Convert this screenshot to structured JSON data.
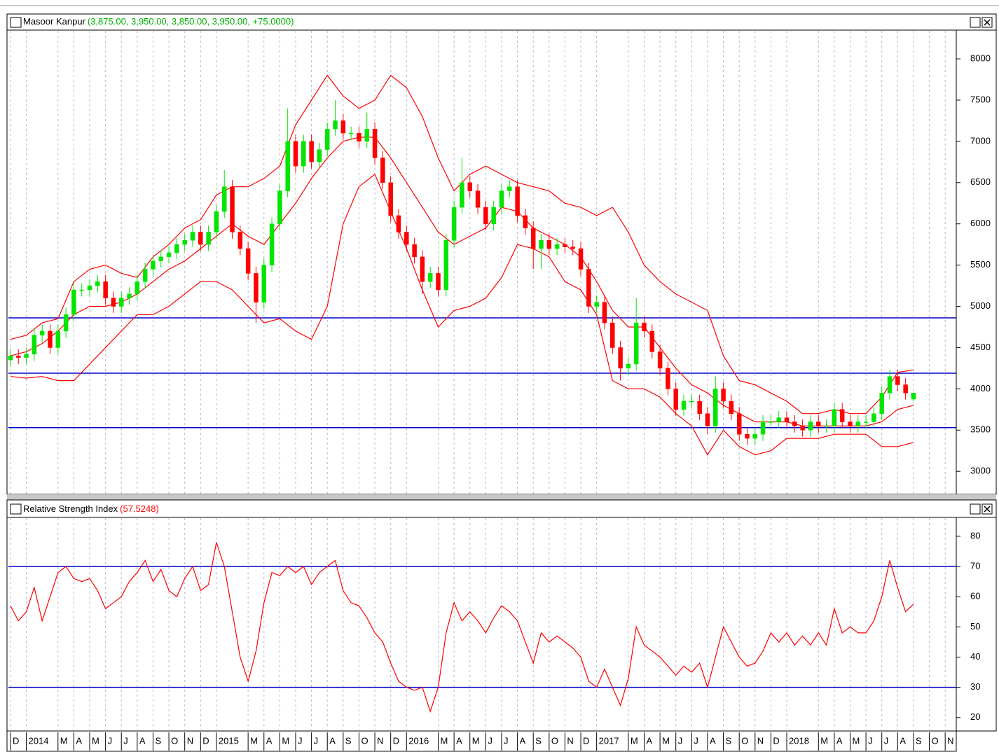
{
  "chart_data": [
    {
      "type": "candlestick",
      "title": "Masoor Kanpur",
      "subtitle": "(3,875.00, 3,950.00, 3,850.00, 3,950.00, +75.0000)",
      "x": [
        0,
        0.5,
        1,
        1.5,
        2,
        2.5,
        3,
        3.5,
        4,
        4.5,
        5,
        5.5,
        6,
        6.5,
        7,
        7.5,
        8,
        8.5,
        9,
        9.5,
        10,
        10.5,
        11,
        11.5,
        12,
        12.5,
        13,
        13.5,
        14,
        14.5,
        15,
        15.5,
        16,
        16.5,
        17,
        17.5,
        18,
        18.5,
        19,
        19.5,
        20,
        20.5,
        21,
        21.5,
        22,
        22.5,
        23,
        23.5,
        24,
        24.5,
        25,
        25.5,
        26,
        26.5,
        27,
        27.5,
        28,
        28.5,
        29,
        29.5,
        30,
        30.5,
        31,
        31.5,
        32,
        32.5,
        33,
        33.5,
        34,
        34.5,
        35,
        35.5,
        36,
        36.5,
        37,
        37.5,
        38,
        38.5,
        39,
        39.5,
        40,
        40.5,
        41,
        41.5,
        42,
        42.5,
        43,
        43.5,
        44,
        44.5,
        45,
        45.5,
        46,
        46.5,
        47,
        47.5,
        48,
        48.5,
        49,
        49.5,
        50,
        50.5,
        51,
        51.5,
        52,
        52.5,
        53,
        53.5,
        54,
        54.5,
        55,
        55.5,
        56,
        56.5,
        57
      ],
      "open": [
        4350,
        4400,
        4380,
        4420,
        4650,
        4700,
        4500,
        4700,
        4900,
        5200,
        5200,
        5250,
        5300,
        5100,
        5000,
        5100,
        5150,
        5300,
        5450,
        5550,
        5600,
        5650,
        5750,
        5800,
        5900,
        5750,
        5900,
        6150,
        6450,
        5900,
        5700,
        5400,
        5050,
        5500,
        6000,
        6400,
        7000,
        6700,
        7000,
        6750,
        6900,
        7150,
        7250,
        7100,
        7100,
        7000,
        7150,
        6800,
        6500,
        6100,
        5900,
        5750,
        5600,
        5300,
        5400,
        5200,
        5800,
        6200,
        6500,
        6400,
        6200,
        6000,
        6200,
        6400,
        6450,
        6100,
        5950,
        5700,
        5800,
        5700,
        5750,
        5720,
        5700,
        5450,
        5000,
        5050,
        4800,
        4500,
        4250,
        4300,
        4800,
        4700,
        4450,
        4250,
        4000,
        3750,
        3850,
        3850,
        3700,
        3550,
        4000,
        3850,
        3700,
        3450,
        3400,
        3450,
        3600,
        3600,
        3650,
        3600,
        3550,
        3500,
        3600,
        3550,
        3550,
        3750,
        3600,
        3550,
        3600,
        3600,
        3700,
        3950,
        4150,
        4050,
        3875
      ],
      "high": [
        4480,
        4480,
        4500,
        4730,
        4780,
        4780,
        4780,
        4980,
        5280,
        5280,
        5330,
        5380,
        5380,
        5180,
        5180,
        5230,
        5380,
        5530,
        5630,
        5680,
        5730,
        5830,
        5880,
        5980,
        5980,
        5980,
        6230,
        6650,
        6530,
        5980,
        5780,
        5480,
        5580,
        6080,
        6480,
        7400,
        7080,
        7080,
        7080,
        6980,
        7230,
        7500,
        7330,
        7180,
        7180,
        7350,
        7230,
        6880,
        6580,
        6180,
        5980,
        5830,
        5680,
        5480,
        5480,
        5880,
        6280,
        6800,
        6580,
        6480,
        6280,
        6280,
        6480,
        6530,
        6530,
        6180,
        6030,
        5880,
        5880,
        5830,
        5830,
        5800,
        5780,
        5530,
        5130,
        5130,
        4880,
        4580,
        4380,
        5100,
        4880,
        4780,
        4530,
        4330,
        4080,
        3930,
        3930,
        3930,
        3780,
        4150,
        4080,
        3930,
        3780,
        3530,
        3530,
        3680,
        3680,
        3730,
        3730,
        3680,
        3630,
        3680,
        3680,
        3630,
        3830,
        3830,
        3680,
        3680,
        3680,
        3780,
        4030,
        4230,
        4230,
        4130,
        3950
      ],
      "low": [
        4270,
        4300,
        4300,
        4340,
        4570,
        4420,
        4420,
        4620,
        4820,
        5120,
        5120,
        5170,
        5020,
        4920,
        4920,
        5020,
        5070,
        5220,
        5370,
        5470,
        5520,
        5570,
        5670,
        5720,
        5670,
        5670,
        5820,
        6070,
        5820,
        5620,
        5320,
        4800,
        4970,
        5420,
        5920,
        6320,
        6620,
        6620,
        6670,
        6670,
        6820,
        7070,
        7020,
        7020,
        6920,
        6920,
        6720,
        6420,
        6020,
        5820,
        5670,
        5520,
        5150,
        5220,
        5120,
        5120,
        5720,
        6120,
        6320,
        6120,
        5920,
        5920,
        6120,
        6320,
        6020,
        5870,
        5450,
        5450,
        5620,
        5620,
        5640,
        5620,
        5370,
        4920,
        4920,
        4720,
        4420,
        4100,
        4170,
        4220,
        4620,
        4370,
        4170,
        3920,
        3670,
        3670,
        3770,
        3620,
        3450,
        3470,
        3770,
        3620,
        3370,
        3320,
        3320,
        3370,
        3520,
        3520,
        3520,
        3470,
        3420,
        3420,
        3470,
        3470,
        3470,
        3520,
        3470,
        3470,
        3520,
        3520,
        3620,
        3870,
        3970,
        3870,
        3850
      ],
      "close": [
        4400,
        4380,
        4420,
        4650,
        4700,
        4500,
        4700,
        4900,
        5200,
        5200,
        5250,
        5300,
        5100,
        5000,
        5100,
        5150,
        5300,
        5450,
        5550,
        5600,
        5650,
        5750,
        5800,
        5900,
        5750,
        5900,
        6150,
        6450,
        5900,
        5700,
        5400,
        5050,
        5500,
        6000,
        6400,
        7000,
        6700,
        7000,
        6750,
        6900,
        7150,
        7250,
        7100,
        7100,
        7000,
        7150,
        6800,
        6500,
        6100,
        5900,
        5750,
        5600,
        5300,
        5400,
        5200,
        5800,
        6200,
        6500,
        6400,
        6200,
        6000,
        6200,
        6400,
        6450,
        6100,
        5950,
        5700,
        5800,
        5700,
        5750,
        5720,
        5700,
        5450,
        5000,
        5050,
        4800,
        4500,
        4250,
        4300,
        4800,
        4700,
        4450,
        4250,
        4000,
        3750,
        3850,
        3850,
        3700,
        3550,
        4000,
        3850,
        3700,
        3450,
        3400,
        3450,
        3600,
        3600,
        3650,
        3600,
        3550,
        3500,
        3600,
        3550,
        3550,
        3750,
        3600,
        3550,
        3600,
        3600,
        3700,
        3950,
        4150,
        4050,
        3950,
        3950
      ],
      "up_color": "#00e600",
      "down_color": "#ff0000",
      "band_x": [
        0,
        1,
        2,
        3,
        4,
        5,
        6,
        7,
        8,
        9,
        10,
        11,
        12,
        13,
        14,
        15,
        16,
        17,
        18,
        19,
        20,
        21,
        22,
        23,
        24,
        25,
        26,
        27,
        28,
        29,
        30,
        31,
        32,
        33,
        34,
        35,
        36,
        37,
        38,
        39,
        40,
        41,
        42,
        43,
        44,
        45,
        46,
        47,
        48,
        49,
        50,
        51,
        52,
        53,
        54,
        55,
        56,
        57
      ],
      "bands": [
        {
          "color": "#ff0000",
          "values": [
            4600,
            4650,
            4800,
            4850,
            5300,
            5450,
            5500,
            5400,
            5350,
            5600,
            5750,
            5950,
            6050,
            6350,
            6450,
            6450,
            6550,
            6700,
            7200,
            7500,
            7800,
            7550,
            7400,
            7500,
            7800,
            7650,
            7300,
            6800,
            6400,
            6600,
            6700,
            6600,
            6500,
            6450,
            6400,
            6250,
            6200,
            6100,
            6200,
            5900,
            5500,
            5300,
            5150,
            5050,
            4950,
            4400,
            4100,
            4050,
            3950,
            3850,
            3700,
            3700,
            3750,
            3700,
            3700,
            3900,
            4200,
            4230
          ]
        },
        {
          "color": "#ff0000",
          "values": [
            4400,
            4450,
            4550,
            4700,
            4900,
            5000,
            5000,
            5050,
            5150,
            5300,
            5450,
            5550,
            5700,
            5850,
            6000,
            5850,
            5750,
            6000,
            6250,
            6550,
            6800,
            7000,
            7050,
            7050,
            6800,
            6500,
            6200,
            5900,
            5750,
            5850,
            5950,
            6200,
            6150,
            5950,
            5850,
            5750,
            5600,
            5300,
            4950,
            4750,
            4750,
            4500,
            4250,
            4050,
            3950,
            3800,
            3700,
            3600,
            3600,
            3600,
            3550,
            3550,
            3550,
            3550,
            3550,
            3600,
            3750,
            3800
          ]
        },
        {
          "color": "#ff0000",
          "values": [
            4150,
            4130,
            4150,
            4100,
            4100,
            4300,
            4500,
            4700,
            4900,
            4900,
            5000,
            5150,
            5300,
            5300,
            5200,
            5000,
            4800,
            4850,
            4700,
            4600,
            5000,
            6000,
            6450,
            6600,
            6150,
            5700,
            5200,
            4750,
            4950,
            5000,
            5100,
            5350,
            5750,
            5700,
            5600,
            5300,
            5200,
            4900,
            4100,
            4000,
            4000,
            3900,
            3700,
            3550,
            3200,
            3500,
            3300,
            3200,
            3250,
            3400,
            3400,
            3400,
            3450,
            3450,
            3450,
            3300,
            3300,
            3350
          ]
        }
      ],
      "hlines": [
        4860,
        4190,
        3530
      ],
      "hline_color": "#0000cc",
      "xlim": [
        -0.13,
        59.7
      ],
      "ylim": [
        2730,
        8340
      ],
      "yticks": [
        3000,
        3500,
        4000,
        4500,
        5000,
        5500,
        6000,
        6500,
        7000,
        7500,
        8000
      ]
    },
    {
      "type": "line",
      "title": "Relative Strength Index",
      "subtitle": "(57.5248)",
      "x": [
        0,
        0.5,
        1,
        1.5,
        2,
        2.5,
        3,
        3.5,
        4,
        4.5,
        5,
        5.5,
        6,
        6.5,
        7,
        7.5,
        8,
        8.5,
        9,
        9.5,
        10,
        10.5,
        11,
        11.5,
        12,
        12.5,
        13,
        13.5,
        14,
        14.5,
        15,
        15.5,
        16,
        16.5,
        17,
        17.5,
        18,
        18.5,
        19,
        19.5,
        20,
        20.5,
        21,
        21.5,
        22,
        22.5,
        23,
        23.5,
        24,
        24.5,
        25,
        25.5,
        26,
        26.5,
        27,
        27.5,
        28,
        28.5,
        29,
        29.5,
        30,
        30.5,
        31,
        31.5,
        32,
        32.5,
        33,
        33.5,
        34,
        34.5,
        35,
        35.5,
        36,
        36.5,
        37,
        37.5,
        38,
        38.5,
        39,
        39.5,
        40,
        40.5,
        41,
        41.5,
        42,
        42.5,
        43,
        43.5,
        44,
        44.5,
        45,
        45.5,
        46,
        46.5,
        47,
        47.5,
        48,
        48.5,
        49,
        49.5,
        50,
        50.5,
        51,
        51.5,
        52,
        52.5,
        53,
        53.5,
        54,
        54.5,
        55,
        55.5,
        56,
        56.5,
        57
      ],
      "values": [
        57,
        52,
        55,
        63,
        52,
        60,
        68,
        70,
        66,
        65,
        66,
        62,
        56,
        58,
        60,
        65,
        68,
        72,
        65,
        69,
        62,
        60,
        66,
        70,
        62,
        64,
        78,
        70,
        55,
        40,
        32,
        42,
        58,
        68,
        67,
        70,
        68,
        70,
        64,
        68,
        70,
        72,
        62,
        58,
        57,
        53,
        48,
        45,
        38,
        32,
        30,
        29,
        30,
        22,
        30,
        48,
        58,
        52,
        55,
        52,
        48,
        53,
        57,
        55,
        52,
        45,
        38,
        48,
        45,
        47,
        45,
        43,
        40,
        32,
        30,
        36,
        30,
        24,
        33,
        50,
        44,
        42,
        40,
        37,
        34,
        37,
        35,
        38,
        30,
        40,
        50,
        45,
        40,
        37,
        38,
        42,
        48,
        45,
        48,
        44,
        47,
        44,
        48,
        44,
        56,
        48,
        50,
        48,
        48,
        52,
        60,
        72,
        63,
        55,
        57.5248
      ],
      "color": "#ff0000",
      "hlines": [
        70,
        30
      ],
      "hline_color": "#0000cc",
      "xlim": [
        -0.13,
        59.7
      ],
      "ylim": [
        16,
        86
      ],
      "yticks": [
        20,
        30,
        40,
        50,
        60,
        70,
        80
      ],
      "xticks": [
        {
          "value": 0,
          "label": "D"
        },
        {
          "value": 1,
          "label": "2014"
        },
        {
          "value": 3,
          "label": "M"
        },
        {
          "value": 4,
          "label": "A"
        },
        {
          "value": 5,
          "label": "M"
        },
        {
          "value": 6,
          "label": "J"
        },
        {
          "value": 7,
          "label": "J"
        },
        {
          "value": 8,
          "label": "A"
        },
        {
          "value": 9,
          "label": "S"
        },
        {
          "value": 10,
          "label": "O"
        },
        {
          "value": 11,
          "label": "N"
        },
        {
          "value": 12,
          "label": "D"
        },
        {
          "value": 13,
          "label": "2015"
        },
        {
          "value": 15,
          "label": "M"
        },
        {
          "value": 16,
          "label": "A"
        },
        {
          "value": 17,
          "label": "M"
        },
        {
          "value": 18,
          "label": "J"
        },
        {
          "value": 19,
          "label": "J"
        },
        {
          "value": 20,
          "label": "A"
        },
        {
          "value": 21,
          "label": "S"
        },
        {
          "value": 22,
          "label": "O"
        },
        {
          "value": 23,
          "label": "N"
        },
        {
          "value": 24,
          "label": "D"
        },
        {
          "value": 25,
          "label": "2016"
        },
        {
          "value": 27,
          "label": "M"
        },
        {
          "value": 28,
          "label": "A"
        },
        {
          "value": 29,
          "label": "M"
        },
        {
          "value": 30,
          "label": "J"
        },
        {
          "value": 31,
          "label": "J"
        },
        {
          "value": 32,
          "label": "A"
        },
        {
          "value": 33,
          "label": "S"
        },
        {
          "value": 34,
          "label": "O"
        },
        {
          "value": 35,
          "label": "N"
        },
        {
          "value": 36,
          "label": "D"
        },
        {
          "value": 37,
          "label": "2017"
        },
        {
          "value": 39,
          "label": "M"
        },
        {
          "value": 40,
          "label": "A"
        },
        {
          "value": 41,
          "label": "M"
        },
        {
          "value": 42,
          "label": "J"
        },
        {
          "value": 43,
          "label": "J"
        },
        {
          "value": 44,
          "label": "A"
        },
        {
          "value": 45,
          "label": "S"
        },
        {
          "value": 46,
          "label": "O"
        },
        {
          "value": 47,
          "label": "N"
        },
        {
          "value": 48,
          "label": "D"
        },
        {
          "value": 49,
          "label": "2018"
        },
        {
          "value": 51,
          "label": "M"
        },
        {
          "value": 52,
          "label": "A"
        },
        {
          "value": 53,
          "label": "M"
        },
        {
          "value": 54,
          "label": "J"
        },
        {
          "value": 55,
          "label": "J"
        },
        {
          "value": 56,
          "label": "A"
        },
        {
          "value": 57,
          "label": "S"
        },
        {
          "value": 58,
          "label": "O"
        },
        {
          "value": 59,
          "label": "N"
        }
      ]
    }
  ]
}
